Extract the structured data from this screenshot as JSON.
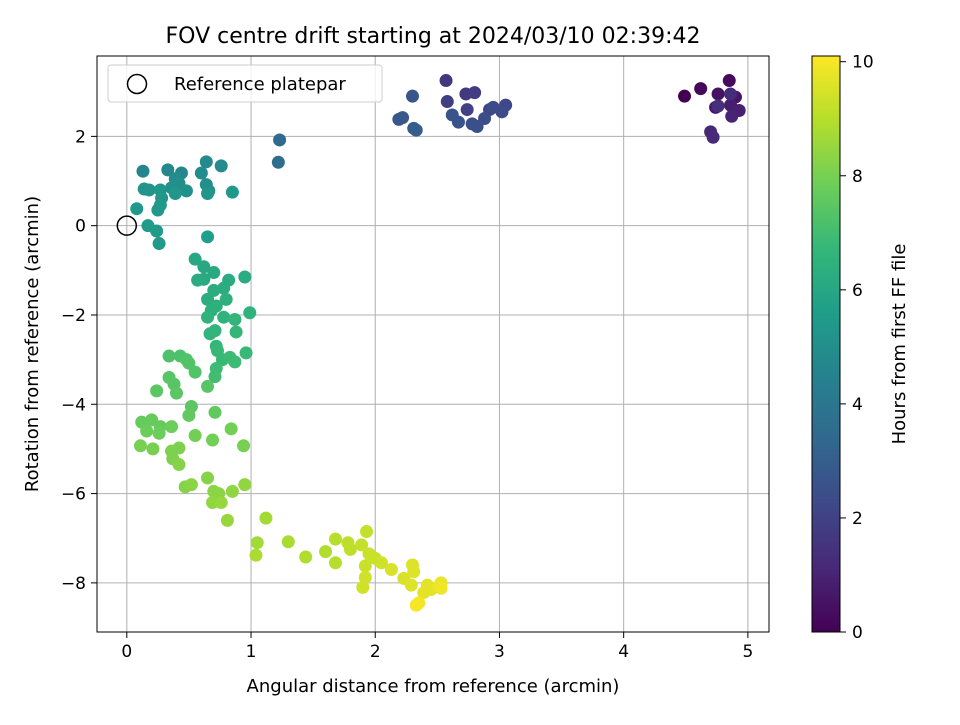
{
  "chart_data": {
    "type": "scatter",
    "title": "FOV centre drift starting at 2024/03/10 02:39:42",
    "xlabel": "Angular distance from reference (arcmin)",
    "ylabel": "Rotation from reference (arcmin)",
    "xlim": [
      -0.24,
      5.17
    ],
    "ylim": [
      -9.1,
      3.8
    ],
    "xticks": [
      0,
      1,
      2,
      3,
      4,
      5
    ],
    "yticks": [
      -8,
      -6,
      -4,
      -2,
      0,
      2
    ],
    "grid": true,
    "legend": {
      "placement": "upper-left",
      "entries": [
        "Reference platepar"
      ]
    },
    "reference_point": {
      "x": 0,
      "y": 0
    },
    "colorbar": {
      "label": "Hours from first FF file",
      "min": 0,
      "max": 10.1,
      "ticks": [
        0,
        2,
        4,
        6,
        8,
        10
      ],
      "colormap": "viridis",
      "colors": [
        "#440154",
        "#482878",
        "#3e4989",
        "#31688e",
        "#26828e",
        "#1f9e89",
        "#35b779",
        "#6ece58",
        "#b5de2b",
        "#fde725"
      ]
    },
    "points": [
      {
        "x": 4.49,
        "y": 2.9,
        "t": 0.0
      },
      {
        "x": 4.62,
        "y": 3.07,
        "t": 0.2
      },
      {
        "x": 4.85,
        "y": 3.25,
        "t": 0.3
      },
      {
        "x": 4.76,
        "y": 2.95,
        "t": 0.5
      },
      {
        "x": 4.9,
        "y": 2.88,
        "t": 0.6
      },
      {
        "x": 4.74,
        "y": 2.65,
        "t": 0.7
      },
      {
        "x": 4.86,
        "y": 2.7,
        "t": 0.8
      },
      {
        "x": 4.93,
        "y": 2.58,
        "t": 0.9
      },
      {
        "x": 4.87,
        "y": 2.45,
        "t": 1.0
      },
      {
        "x": 4.7,
        "y": 2.1,
        "t": 1.1
      },
      {
        "x": 4.72,
        "y": 1.98,
        "t": 1.2
      },
      {
        "x": 4.86,
        "y": 2.95,
        "t": 1.3
      },
      {
        "x": 4.76,
        "y": 2.68,
        "t": 1.4
      },
      {
        "x": 2.57,
        "y": 3.25,
        "t": 1.6
      },
      {
        "x": 2.73,
        "y": 2.95,
        "t": 1.7
      },
      {
        "x": 2.8,
        "y": 2.98,
        "t": 1.8
      },
      {
        "x": 2.58,
        "y": 2.78,
        "t": 1.9
      },
      {
        "x": 2.74,
        "y": 2.6,
        "t": 2.0
      },
      {
        "x": 2.92,
        "y": 2.6,
        "t": 2.1
      },
      {
        "x": 3.05,
        "y": 2.7,
        "t": 2.2
      },
      {
        "x": 3.02,
        "y": 2.55,
        "t": 2.3
      },
      {
        "x": 2.95,
        "y": 2.65,
        "t": 2.3
      },
      {
        "x": 2.88,
        "y": 2.4,
        "t": 2.4
      },
      {
        "x": 2.78,
        "y": 2.28,
        "t": 2.5
      },
      {
        "x": 2.82,
        "y": 2.22,
        "t": 2.5
      },
      {
        "x": 2.67,
        "y": 2.32,
        "t": 2.6
      },
      {
        "x": 2.62,
        "y": 2.48,
        "t": 2.6
      },
      {
        "x": 2.3,
        "y": 2.9,
        "t": 2.7
      },
      {
        "x": 2.22,
        "y": 2.42,
        "t": 2.8
      },
      {
        "x": 2.19,
        "y": 2.38,
        "t": 2.8
      },
      {
        "x": 2.31,
        "y": 2.18,
        "t": 2.9
      },
      {
        "x": 2.33,
        "y": 2.14,
        "t": 3.0
      },
      {
        "x": 1.23,
        "y": 1.92,
        "t": 3.5
      },
      {
        "x": 1.22,
        "y": 1.42,
        "t": 3.6
      },
      {
        "x": 0.13,
        "y": 1.22,
        "t": 4.6
      },
      {
        "x": 0.33,
        "y": 1.25,
        "t": 4.7
      },
      {
        "x": 0.44,
        "y": 1.18,
        "t": 4.7
      },
      {
        "x": 0.64,
        "y": 1.43,
        "t": 4.8
      },
      {
        "x": 0.76,
        "y": 1.34,
        "t": 4.8
      },
      {
        "x": 0.6,
        "y": 1.18,
        "t": 4.9
      },
      {
        "x": 0.39,
        "y": 1.05,
        "t": 4.9
      },
      {
        "x": 0.42,
        "y": 0.95,
        "t": 5.0
      },
      {
        "x": 0.64,
        "y": 0.92,
        "t": 5.0
      },
      {
        "x": 0.66,
        "y": 0.78,
        "t": 5.0
      },
      {
        "x": 0.36,
        "y": 0.85,
        "t": 5.1
      },
      {
        "x": 0.48,
        "y": 0.78,
        "t": 5.1
      },
      {
        "x": 0.14,
        "y": 0.82,
        "t": 5.2
      },
      {
        "x": 0.18,
        "y": 0.8,
        "t": 5.2
      },
      {
        "x": 0.27,
        "y": 0.8,
        "t": 5.3
      },
      {
        "x": 0.28,
        "y": 0.62,
        "t": 5.3
      },
      {
        "x": 0.39,
        "y": 0.72,
        "t": 5.3
      },
      {
        "x": 0.65,
        "y": 0.72,
        "t": 5.3
      },
      {
        "x": 0.85,
        "y": 0.75,
        "t": 5.4
      },
      {
        "x": 0.27,
        "y": 0.46,
        "t": 5.4
      },
      {
        "x": 0.25,
        "y": 0.35,
        "t": 5.4
      },
      {
        "x": 0.08,
        "y": 0.38,
        "t": 5.4
      },
      {
        "x": 0.17,
        "y": 0.0,
        "t": 5.5
      },
      {
        "x": 0.24,
        "y": -0.12,
        "t": 5.5
      },
      {
        "x": 0.26,
        "y": -0.4,
        "t": 5.5
      },
      {
        "x": 0.65,
        "y": -0.25,
        "t": 5.6
      },
      {
        "x": 0.55,
        "y": -0.75,
        "t": 6.0
      },
      {
        "x": 0.62,
        "y": -0.92,
        "t": 6.0
      },
      {
        "x": 0.7,
        "y": -1.05,
        "t": 6.1
      },
      {
        "x": 0.62,
        "y": -1.2,
        "t": 6.1
      },
      {
        "x": 0.57,
        "y": -1.22,
        "t": 6.2
      },
      {
        "x": 0.82,
        "y": -1.22,
        "t": 6.2
      },
      {
        "x": 0.95,
        "y": -1.15,
        "t": 6.2
      },
      {
        "x": 0.7,
        "y": -1.45,
        "t": 6.3
      },
      {
        "x": 0.78,
        "y": -1.4,
        "t": 6.3
      },
      {
        "x": 0.65,
        "y": -1.65,
        "t": 6.3
      },
      {
        "x": 0.8,
        "y": -1.65,
        "t": 6.4
      },
      {
        "x": 0.72,
        "y": -1.8,
        "t": 6.4
      },
      {
        "x": 0.68,
        "y": -1.9,
        "t": 6.4
      },
      {
        "x": 0.65,
        "y": -2.05,
        "t": 6.5
      },
      {
        "x": 0.99,
        "y": -1.95,
        "t": 6.5
      },
      {
        "x": 0.78,
        "y": -2.05,
        "t": 6.5
      },
      {
        "x": 0.87,
        "y": -2.1,
        "t": 6.6
      },
      {
        "x": 0.71,
        "y": -2.35,
        "t": 6.6
      },
      {
        "x": 0.67,
        "y": -2.42,
        "t": 6.6
      },
      {
        "x": 0.88,
        "y": -2.38,
        "t": 6.7
      },
      {
        "x": 0.72,
        "y": -2.7,
        "t": 6.7
      },
      {
        "x": 0.73,
        "y": -2.8,
        "t": 6.8
      },
      {
        "x": 0.96,
        "y": -2.85,
        "t": 6.8
      },
      {
        "x": 0.77,
        "y": -3.0,
        "t": 6.8
      },
      {
        "x": 0.83,
        "y": -2.95,
        "t": 6.9
      },
      {
        "x": 0.87,
        "y": -3.05,
        "t": 6.9
      },
      {
        "x": 0.72,
        "y": -3.2,
        "t": 6.9
      },
      {
        "x": 0.71,
        "y": -3.38,
        "t": 7.0
      },
      {
        "x": 0.34,
        "y": -2.92,
        "t": 7.2
      },
      {
        "x": 0.43,
        "y": -2.92,
        "t": 7.2
      },
      {
        "x": 0.48,
        "y": -3.0,
        "t": 7.3
      },
      {
        "x": 0.5,
        "y": -3.08,
        "t": 7.3
      },
      {
        "x": 0.55,
        "y": -3.28,
        "t": 7.3
      },
      {
        "x": 0.34,
        "y": -3.4,
        "t": 7.4
      },
      {
        "x": 0.38,
        "y": -3.55,
        "t": 7.4
      },
      {
        "x": 0.65,
        "y": -3.6,
        "t": 7.4
      },
      {
        "x": 0.24,
        "y": -3.7,
        "t": 7.5
      },
      {
        "x": 0.4,
        "y": -3.75,
        "t": 7.5
      },
      {
        "x": 0.52,
        "y": -4.05,
        "t": 7.5
      },
      {
        "x": 0.5,
        "y": -4.25,
        "t": 7.6
      },
      {
        "x": 0.71,
        "y": -4.18,
        "t": 7.6
      },
      {
        "x": 0.12,
        "y": -4.4,
        "t": 7.7
      },
      {
        "x": 0.2,
        "y": -4.35,
        "t": 7.7
      },
      {
        "x": 0.27,
        "y": -4.5,
        "t": 7.7
      },
      {
        "x": 0.36,
        "y": -4.5,
        "t": 7.8
      },
      {
        "x": 0.16,
        "y": -4.6,
        "t": 7.8
      },
      {
        "x": 0.26,
        "y": -4.65,
        "t": 7.8
      },
      {
        "x": 0.55,
        "y": -4.7,
        "t": 7.9
      },
      {
        "x": 0.69,
        "y": -4.8,
        "t": 7.9
      },
      {
        "x": 0.84,
        "y": -4.55,
        "t": 7.9
      },
      {
        "x": 0.94,
        "y": -4.93,
        "t": 8.0
      },
      {
        "x": 0.11,
        "y": -4.93,
        "t": 8.0
      },
      {
        "x": 0.21,
        "y": -5.0,
        "t": 8.0
      },
      {
        "x": 0.36,
        "y": -5.05,
        "t": 8.1
      },
      {
        "x": 0.42,
        "y": -4.98,
        "t": 8.1
      },
      {
        "x": 0.37,
        "y": -5.22,
        "t": 8.1
      },
      {
        "x": 0.42,
        "y": -5.35,
        "t": 8.2
      },
      {
        "x": 0.65,
        "y": -5.65,
        "t": 8.2
      },
      {
        "x": 0.47,
        "y": -5.85,
        "t": 8.2
      },
      {
        "x": 0.52,
        "y": -5.8,
        "t": 8.3
      },
      {
        "x": 0.7,
        "y": -5.95,
        "t": 8.3
      },
      {
        "x": 0.74,
        "y": -6.0,
        "t": 8.3
      },
      {
        "x": 0.85,
        "y": -5.95,
        "t": 8.4
      },
      {
        "x": 0.95,
        "y": -5.8,
        "t": 8.4
      },
      {
        "x": 0.69,
        "y": -6.2,
        "t": 8.4
      },
      {
        "x": 0.76,
        "y": -6.2,
        "t": 8.5
      },
      {
        "x": 0.81,
        "y": -6.6,
        "t": 8.5
      },
      {
        "x": 1.12,
        "y": -6.55,
        "t": 8.7
      },
      {
        "x": 1.05,
        "y": -7.1,
        "t": 8.7
      },
      {
        "x": 1.04,
        "y": -7.38,
        "t": 8.8
      },
      {
        "x": 1.3,
        "y": -7.08,
        "t": 8.8
      },
      {
        "x": 1.44,
        "y": -7.42,
        "t": 8.9
      },
      {
        "x": 1.6,
        "y": -7.3,
        "t": 8.9
      },
      {
        "x": 1.68,
        "y": -7.02,
        "t": 9.0
      },
      {
        "x": 1.68,
        "y": -7.55,
        "t": 9.0
      },
      {
        "x": 1.78,
        "y": -7.1,
        "t": 9.1
      },
      {
        "x": 1.8,
        "y": -7.25,
        "t": 9.1
      },
      {
        "x": 1.93,
        "y": -6.85,
        "t": 9.2
      },
      {
        "x": 1.89,
        "y": -7.15,
        "t": 9.2
      },
      {
        "x": 1.95,
        "y": -7.35,
        "t": 9.3
      },
      {
        "x": 2.0,
        "y": -7.45,
        "t": 9.3
      },
      {
        "x": 1.92,
        "y": -7.62,
        "t": 9.3
      },
      {
        "x": 1.92,
        "y": -7.88,
        "t": 9.4
      },
      {
        "x": 1.9,
        "y": -8.1,
        "t": 9.4
      },
      {
        "x": 2.05,
        "y": -7.55,
        "t": 9.4
      },
      {
        "x": 2.13,
        "y": -7.7,
        "t": 9.5
      },
      {
        "x": 2.23,
        "y": -7.9,
        "t": 9.5
      },
      {
        "x": 2.3,
        "y": -7.6,
        "t": 9.6
      },
      {
        "x": 2.31,
        "y": -7.75,
        "t": 9.6
      },
      {
        "x": 2.29,
        "y": -8.05,
        "t": 9.6
      },
      {
        "x": 2.39,
        "y": -8.22,
        "t": 9.7
      },
      {
        "x": 2.42,
        "y": -8.05,
        "t": 9.7
      },
      {
        "x": 2.45,
        "y": -8.15,
        "t": 9.7
      },
      {
        "x": 2.51,
        "y": -8.08,
        "t": 9.8
      },
      {
        "x": 2.53,
        "y": -8.0,
        "t": 9.8
      },
      {
        "x": 2.53,
        "y": -8.12,
        "t": 9.9
      },
      {
        "x": 2.35,
        "y": -8.45,
        "t": 9.9
      },
      {
        "x": 2.33,
        "y": -8.5,
        "t": 10.0
      }
    ]
  }
}
